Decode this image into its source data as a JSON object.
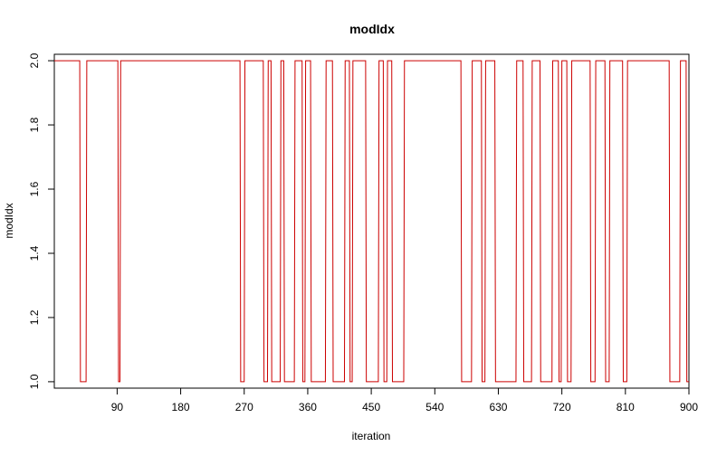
{
  "chart_data": {
    "type": "line",
    "title": "modIdx",
    "xlabel": "iteration",
    "ylabel": "modIdx",
    "xlim": [
      1,
      900
    ],
    "ylim": [
      0.98,
      2.02
    ],
    "x_ticks": [
      90,
      180,
      270,
      360,
      450,
      540,
      630,
      720,
      810,
      900
    ],
    "y_ticks": [
      1.0,
      1.2,
      1.4,
      1.6,
      1.8,
      2.0
    ],
    "x_tick_labels": [
      "90",
      "180",
      "270",
      "360",
      "450",
      "540",
      "630",
      "720",
      "810",
      "900"
    ],
    "y_tick_labels": [
      "1.0",
      "1.2",
      "1.4",
      "1.6",
      "1.8",
      "2.0"
    ],
    "grid": false,
    "series": [
      {
        "color": "#cc0000",
        "x": [
          1,
          37,
          38,
          46,
          47,
          54,
          55,
          91,
          92,
          94,
          95,
          167,
          168,
          212,
          213,
          264,
          265,
          270,
          271,
          297,
          298,
          303,
          304,
          308,
          309,
          321,
          322,
          326,
          327,
          341,
          342,
          352,
          353,
          356,
          357,
          364,
          365,
          385,
          386,
          395,
          396,
          412,
          413,
          419,
          420,
          423,
          424,
          442,
          443,
          460,
          461,
          467,
          468,
          472,
          473,
          479,
          480,
          496,
          497,
          577,
          578,
          592,
          593,
          606,
          607,
          611,
          612,
          625,
          626,
          655,
          656,
          665,
          666,
          677,
          678,
          689,
          690,
          706,
          707,
          715,
          716,
          719,
          720,
          727,
          728,
          733,
          734,
          760,
          761,
          767,
          768,
          781,
          782,
          787,
          788,
          806,
          807,
          812,
          813,
          872,
          873,
          887,
          888,
          896,
          897,
          900
        ],
        "y": [
          2,
          2,
          1,
          1,
          2,
          2,
          2,
          2,
          1,
          1,
          2,
          2,
          2,
          2,
          2,
          2,
          1,
          1,
          2,
          2,
          1,
          1,
          2,
          2,
          1,
          1,
          2,
          2,
          1,
          1,
          2,
          2,
          1,
          1,
          2,
          2,
          1,
          1,
          2,
          2,
          1,
          1,
          2,
          2,
          1,
          1,
          2,
          2,
          1,
          1,
          2,
          2,
          1,
          1,
          2,
          2,
          1,
          1,
          2,
          2,
          1,
          1,
          2,
          2,
          1,
          1,
          2,
          2,
          1,
          1,
          2,
          2,
          1,
          1,
          2,
          2,
          1,
          1,
          2,
          2,
          1,
          1,
          2,
          2,
          1,
          1,
          2,
          2,
          1,
          1,
          2,
          2,
          1,
          1,
          2,
          2,
          1,
          1,
          2,
          2,
          1,
          1,
          2,
          2,
          1,
          1
        ]
      }
    ]
  }
}
